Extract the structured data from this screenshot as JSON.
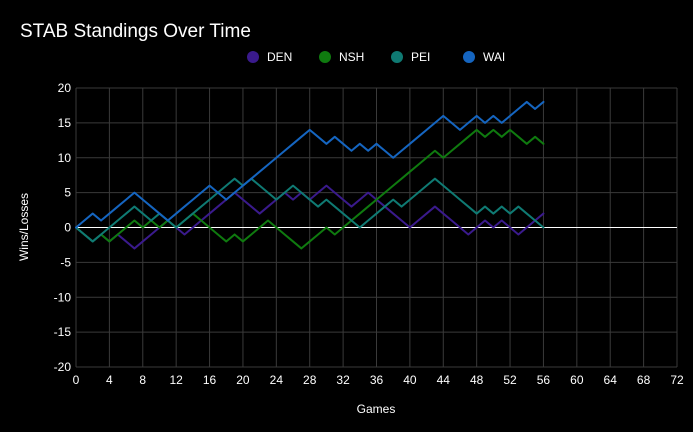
{
  "chart_data": {
    "type": "line",
    "title": "STAB Standings Over Time",
    "xlabel": "Games",
    "ylabel": "Wins/Losses",
    "xlim": [
      0,
      72
    ],
    "ylim": [
      -20,
      20
    ],
    "x_ticks": [
      0,
      4,
      8,
      12,
      16,
      20,
      24,
      28,
      32,
      36,
      40,
      44,
      48,
      52,
      56,
      60,
      64,
      68,
      72
    ],
    "y_ticks": [
      20,
      15,
      10,
      5,
      0,
      -5,
      -10,
      -15,
      -20
    ],
    "grid": true,
    "legend_position": "top-center",
    "x": [
      0,
      1,
      2,
      3,
      4,
      5,
      6,
      7,
      8,
      9,
      10,
      11,
      12,
      13,
      14,
      15,
      16,
      17,
      18,
      19,
      20,
      21,
      22,
      23,
      24,
      25,
      26,
      27,
      28,
      29,
      30,
      31,
      32,
      33,
      34,
      35,
      36,
      37,
      38,
      39,
      40,
      41,
      42,
      43,
      44,
      45,
      46,
      47,
      48,
      49,
      50,
      51,
      52,
      53,
      54,
      55,
      56
    ],
    "series": [
      {
        "name": "DEN",
        "color": "#3a1a8c",
        "values": [
          0,
          -1,
          -2,
          -1,
          -2,
          -1,
          -2,
          -3,
          -2,
          -1,
          0,
          1,
          0,
          -1,
          0,
          1,
          2,
          3,
          4,
          5,
          4,
          3,
          2,
          3,
          4,
          5,
          4,
          5,
          4,
          5,
          6,
          5,
          4,
          3,
          4,
          5,
          4,
          3,
          2,
          1,
          0,
          1,
          2,
          3,
          2,
          1,
          0,
          -1,
          0,
          1,
          0,
          1,
          0,
          -1,
          0,
          1,
          2
        ]
      },
      {
        "name": "NSH",
        "color": "#0f7a0f",
        "values": [
          0,
          -1,
          -2,
          -1,
          -2,
          -1,
          0,
          1,
          0,
          1,
          0,
          1,
          0,
          1,
          2,
          1,
          0,
          -1,
          -2,
          -1,
          -2,
          -1,
          0,
          1,
          0,
          -1,
          -2,
          -3,
          -2,
          -1,
          0,
          -1,
          0,
          1,
          2,
          3,
          4,
          5,
          6,
          7,
          8,
          9,
          10,
          11,
          10,
          11,
          12,
          13,
          14,
          13,
          14,
          13,
          14,
          13,
          12,
          13,
          12
        ]
      },
      {
        "name": "PEI",
        "color": "#0f7a73",
        "values": [
          0,
          -1,
          -2,
          -1,
          0,
          1,
          2,
          3,
          2,
          1,
          2,
          1,
          0,
          1,
          2,
          3,
          4,
          5,
          6,
          7,
          6,
          7,
          6,
          5,
          4,
          5,
          6,
          5,
          4,
          3,
          4,
          3,
          2,
          1,
          0,
          1,
          2,
          3,
          4,
          3,
          4,
          5,
          6,
          7,
          6,
          5,
          4,
          3,
          2,
          3,
          2,
          3,
          2,
          3,
          2,
          1,
          0
        ]
      },
      {
        "name": "WAI",
        "color": "#1565c0",
        "values": [
          0,
          1,
          2,
          1,
          2,
          3,
          4,
          5,
          4,
          3,
          2,
          1,
          2,
          3,
          4,
          5,
          6,
          5,
          4,
          5,
          6,
          7,
          8,
          9,
          10,
          11,
          12,
          13,
          14,
          13,
          12,
          13,
          12,
          11,
          12,
          11,
          12,
          11,
          10,
          11,
          12,
          13,
          14,
          15,
          16,
          15,
          14,
          15,
          16,
          15,
          16,
          15,
          16,
          17,
          18,
          17,
          18
        ]
      }
    ]
  }
}
